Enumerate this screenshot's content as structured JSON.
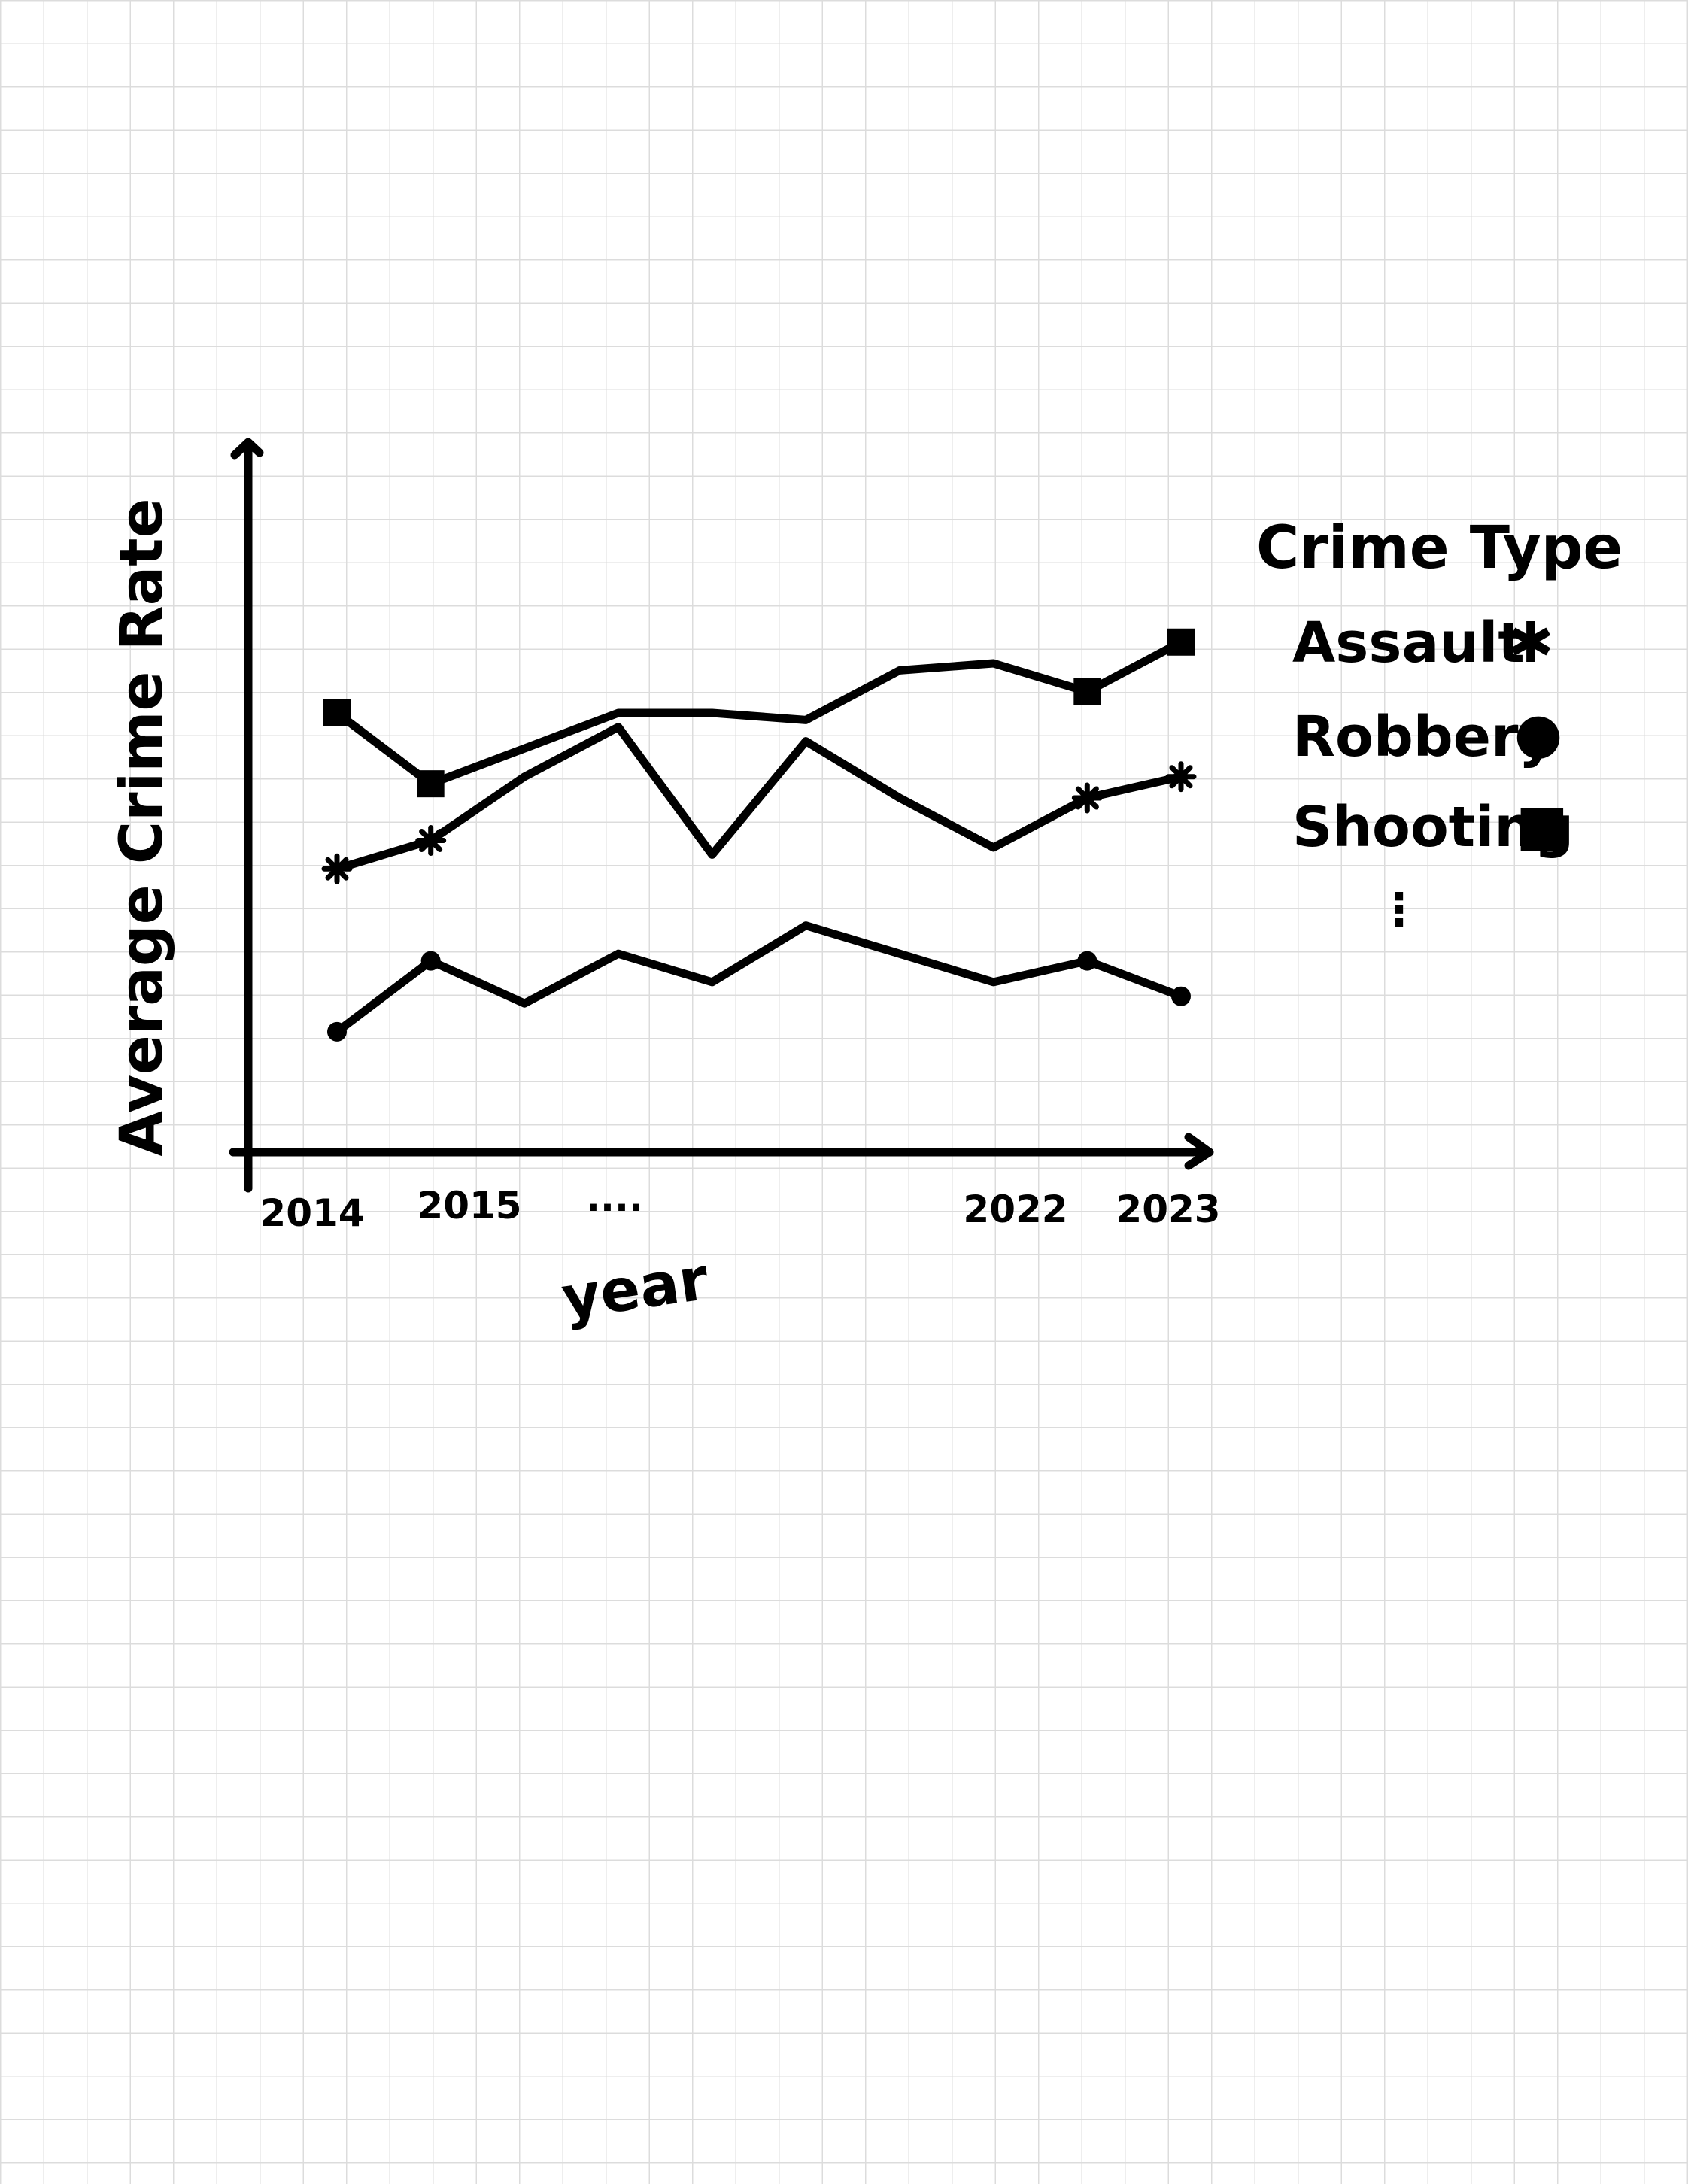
{
  "chart_data": {
    "type": "line",
    "title": "",
    "xlabel": "year",
    "ylabel": "Average Crime Rate",
    "x_tick_labels": [
      "2014",
      "2015",
      "....",
      "2022",
      "2023"
    ],
    "x": [
      2014,
      2015,
      2016,
      2017,
      2018,
      2019,
      2020,
      2021,
      2022,
      2023
    ],
    "ylim": [
      0,
      100
    ],
    "grid": true,
    "legend": {
      "title": "Crime Type",
      "placement": "right",
      "ellipsis": "⋮"
    },
    "series": [
      {
        "name": "Assault",
        "marker": "✱",
        "marker_years": [
          2014,
          2015,
          2022,
          2023
        ],
        "values": [
          40,
          44,
          53,
          60,
          42,
          58,
          50,
          43,
          50,
          53
        ]
      },
      {
        "name": "Robbery",
        "marker": "●",
        "marker_years": [
          2014,
          2015,
          2022,
          2023
        ],
        "values": [
          17,
          27,
          21,
          28,
          24,
          32,
          28,
          24,
          27,
          22
        ]
      },
      {
        "name": "Shooting",
        "marker": "■",
        "marker_years": [
          2014,
          2015,
          2022,
          2023
        ],
        "values": [
          62,
          52,
          57,
          62,
          62,
          61,
          68,
          69,
          65,
          72
        ]
      }
    ]
  }
}
